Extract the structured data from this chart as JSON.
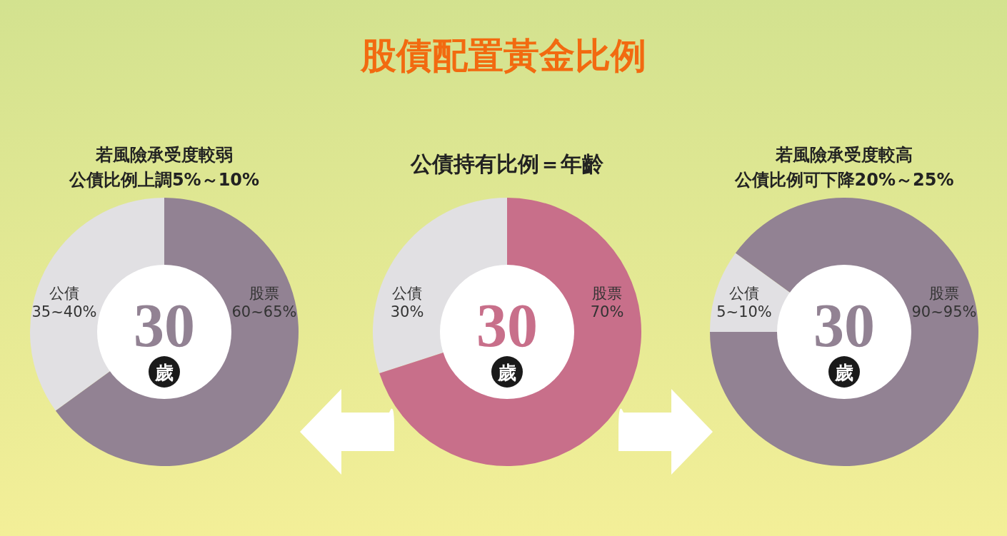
{
  "chart_data": [
    {
      "type": "other",
      "title": "股債配置黃金比例"
    },
    {
      "type": "donut",
      "title": "若風險承受度較弱",
      "subtitle": "公債比例上調5%～10%",
      "categories": [
        "公債",
        "股票"
      ],
      "values": [
        35,
        65
      ],
      "colors": [
        "#e1e0e3",
        "#928293"
      ],
      "value_labels": [
        "35~40%",
        "60~65%"
      ],
      "annotations": [
        "30",
        "歲"
      ]
    },
    {
      "type": "donut",
      "title": "公債持有比例＝年齡",
      "categories": [
        "公債",
        "股票"
      ],
      "values": [
        30,
        70
      ],
      "colors": [
        "#e1e0e3",
        "#c86f8a"
      ],
      "value_labels": [
        "30%",
        "70%"
      ],
      "annotations": [
        "30",
        "歲"
      ]
    },
    {
      "type": "donut",
      "title": "若風險承受度較高",
      "subtitle": "公債比例可下降20%～25%",
      "categories": [
        "公債",
        "股票"
      ],
      "values": [
        10,
        90
      ],
      "colors": [
        "#e1e0e3",
        "#928293"
      ],
      "value_labels": [
        "5~10%",
        "90~95%"
      ],
      "annotations": [
        "30",
        "歲"
      ]
    }
  ]
}
